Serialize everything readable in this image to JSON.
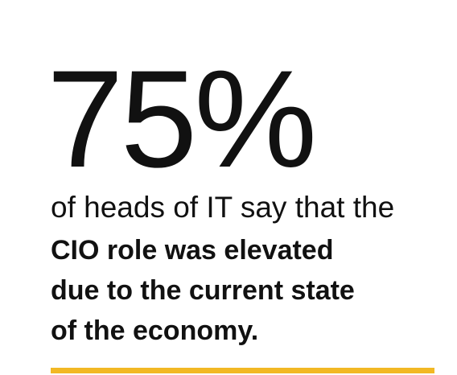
{
  "stat": "75%",
  "lead": "of heads of IT say that the",
  "emphasis": [
    "CIO role was elevated",
    "due to the current state",
    "of the economy."
  ]
}
